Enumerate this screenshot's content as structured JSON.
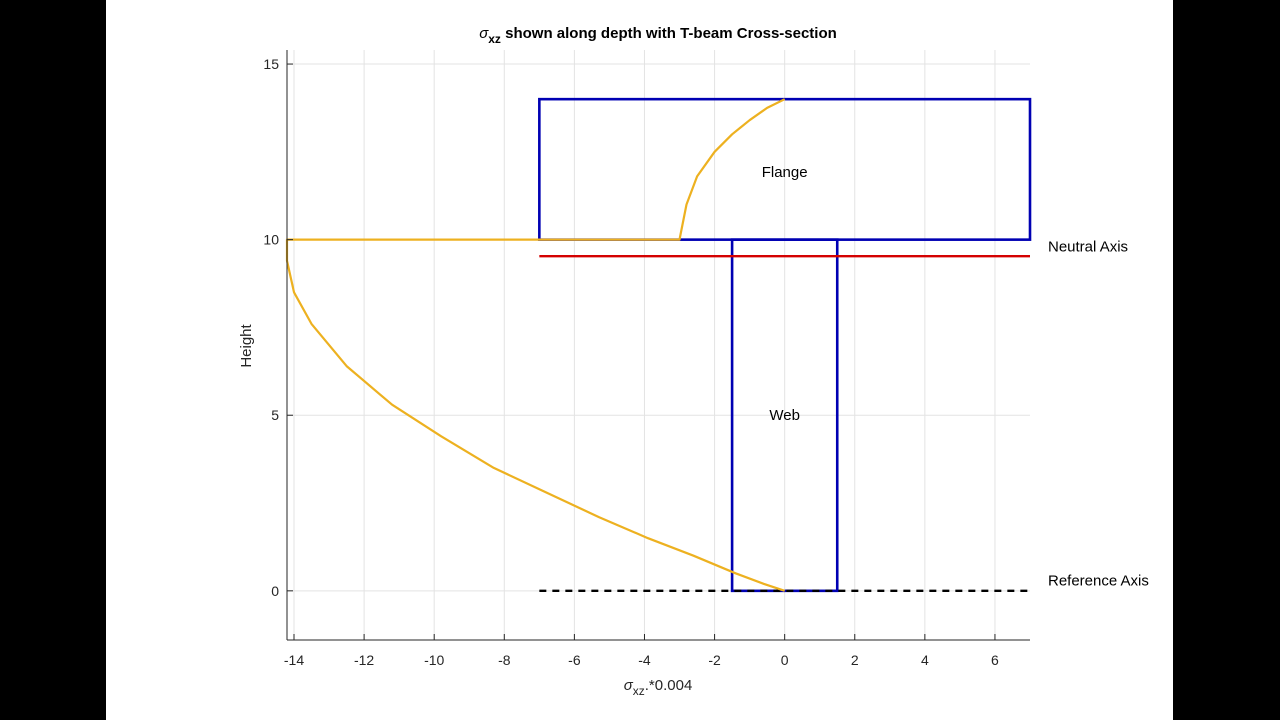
{
  "chart_data": {
    "type": "line",
    "title": "σxz shown along depth with T-beam Cross-section",
    "title_parts": {
      "sigma": "σ",
      "sub": "xz",
      "rest": " shown along depth with T-beam Cross-section"
    },
    "xlabel": "σxz.*0.004",
    "xlabel_parts": {
      "sigma": "σ",
      "sub": "xz",
      "rest": ".*0.004"
    },
    "ylabel": "Height",
    "xlim": [
      -14.2,
      7
    ],
    "ylim": [
      -1.4,
      15.4
    ],
    "xticks": [
      -14,
      -12,
      -10,
      -8,
      -6,
      -4,
      -2,
      0,
      2,
      4,
      6
    ],
    "yticks": [
      0,
      5,
      10,
      15
    ],
    "grid": true,
    "series": [
      {
        "kind": "shear-stress-curve",
        "color": "#EDB120",
        "x": [
          0,
          -0.6,
          -1.4,
          -2.6,
          -3.9,
          -5.3,
          -6.8,
          -8.3,
          -9.8,
          -11.2,
          -12.5,
          -13.5,
          -14.0,
          -14.2,
          -14.2,
          -10,
          -7,
          -5,
          -3,
          -3,
          -2.8,
          -2.5,
          -2,
          -1.5,
          -1,
          -0.5,
          0
        ],
        "y": [
          0,
          0.2,
          0.5,
          1.0,
          1.5,
          2.1,
          2.8,
          3.5,
          4.4,
          5.3,
          6.4,
          7.6,
          8.5,
          9.4,
          10.0,
          10.0,
          10.0,
          10.0,
          10.0,
          10.0,
          11.0,
          11.8,
          12.5,
          13.0,
          13.4,
          13.75,
          14.0
        ]
      }
    ],
    "cross_section": {
      "color": "#0000B3",
      "flange": {
        "x": [
          -7,
          7
        ],
        "y": [
          10,
          14
        ],
        "label": "Flange"
      },
      "web": {
        "x": [
          -1.5,
          1.5
        ],
        "y": [
          0,
          10
        ],
        "label": "Web"
      }
    },
    "neutral_axis": {
      "y": 9.53,
      "x": [
        -7,
        7
      ],
      "color": "#D40000",
      "label": "Neutral Axis"
    },
    "reference_axis": {
      "y": 0,
      "x": [
        -7,
        7
      ],
      "color": "#000000",
      "label": "Reference Axis",
      "style": "dashed"
    }
  }
}
